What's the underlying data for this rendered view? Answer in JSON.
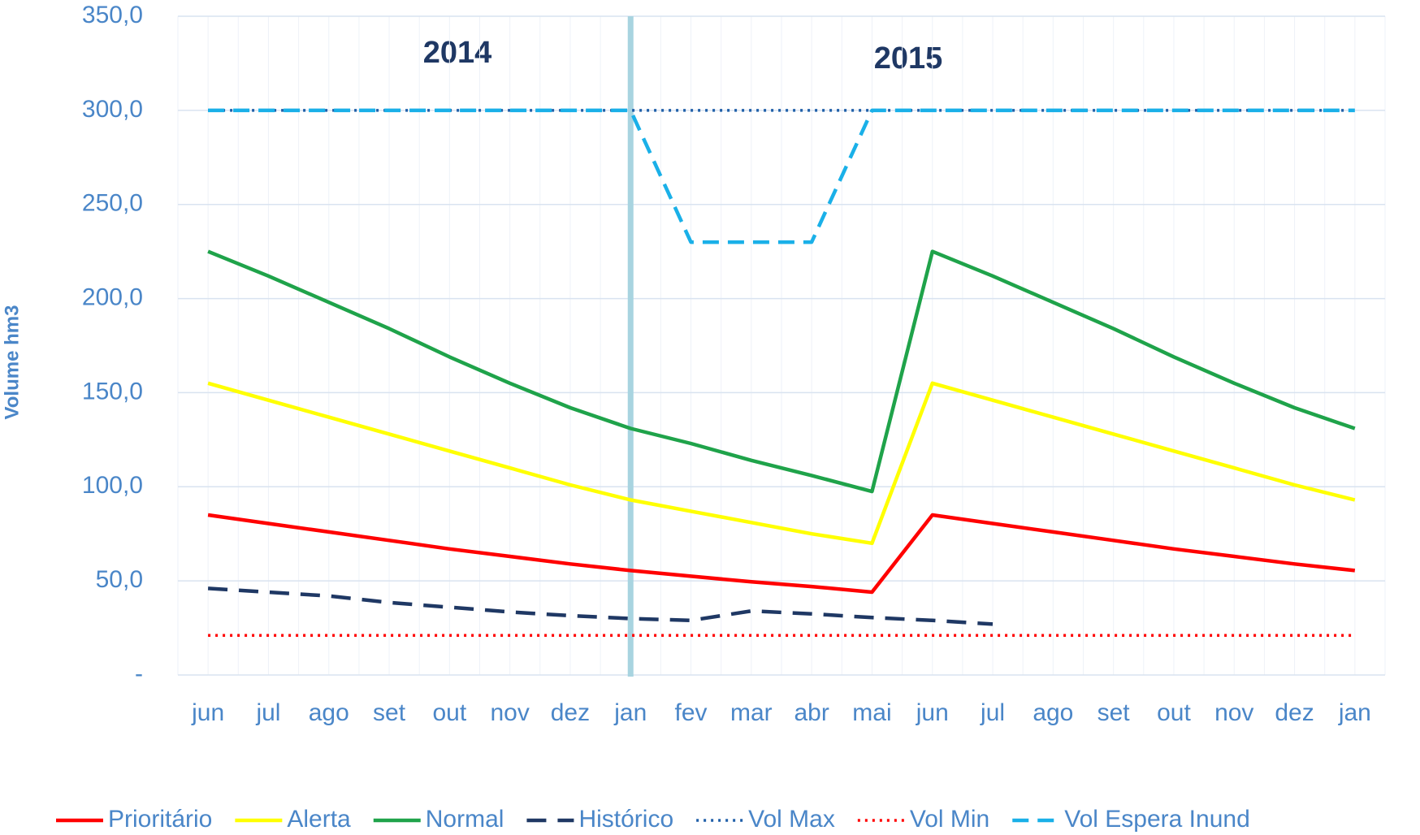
{
  "chart_data": {
    "type": "line",
    "annotations": [
      "2014",
      "2015"
    ],
    "y_label": "Volume hm3",
    "categories": [
      "jun",
      "jul",
      "ago",
      "set",
      "out",
      "nov",
      "dez",
      "jan",
      "fev",
      "mar",
      "abr",
      "mai",
      "jun",
      "jul",
      "ago",
      "set",
      "out",
      "nov",
      "dez",
      "jan"
    ],
    "series": [
      {
        "name": "Prioritário",
        "color": "#ff0000",
        "dash": "solid",
        "values": [
          85,
          80.5,
          76,
          71.5,
          67,
          63,
          59,
          55.5,
          52.5,
          49.5,
          47,
          44,
          85,
          80.5,
          76,
          71.5,
          67,
          63,
          59,
          55.5
        ]
      },
      {
        "name": "Alerta",
        "color": "#ffff00",
        "dash": "solid",
        "values": [
          155,
          146,
          137,
          128,
          119,
          110,
          101,
          93,
          87,
          81,
          75,
          70,
          155,
          146,
          137,
          128,
          119,
          110,
          101,
          93
        ]
      },
      {
        "name": "Normal",
        "color": "#1fa34a",
        "dash": "solid",
        "values": [
          225,
          212,
          198,
          184,
          169,
          155,
          142,
          131,
          123,
          114,
          106,
          97.5,
          225,
          212,
          198,
          184,
          169,
          155,
          142,
          131
        ]
      },
      {
        "name": "Histórico",
        "color": "#1f3864",
        "dash": "dashed",
        "values": [
          46,
          44,
          42,
          38.5,
          36,
          33.5,
          31.5,
          30,
          29,
          34,
          32.5,
          30.5,
          29,
          27,
          null,
          null,
          null,
          null,
          null,
          null
        ]
      },
      {
        "name": "Vol Max",
        "color": "#1f5fa8",
        "dash": "dotted",
        "values": [
          300,
          300,
          300,
          300,
          300,
          300,
          300,
          300,
          300,
          300,
          300,
          300,
          300,
          300,
          300,
          300,
          300,
          300,
          300,
          300
        ]
      },
      {
        "name": "Vol Min",
        "color": "#ff0000",
        "dash": "dotted",
        "values": [
          21,
          21,
          21,
          21,
          21,
          21,
          21,
          21,
          21,
          21,
          21,
          21,
          21,
          21,
          21,
          21,
          21,
          21,
          21,
          21
        ]
      },
      {
        "name": "Vol Espera Inund",
        "color": "#1ab0e8",
        "dash": "dashed",
        "values": [
          300,
          300,
          300,
          300,
          300,
          300,
          300,
          300,
          230,
          230,
          230,
          300,
          300,
          300,
          300,
          300,
          300,
          300,
          300,
          300
        ]
      }
    ],
    "ylim": [
      0,
      350
    ],
    "yticks": [
      {
        "value": 0,
        "label": "-"
      },
      {
        "value": 50,
        "label": "50,0"
      },
      {
        "value": 100,
        "label": "100,0"
      },
      {
        "value": 150,
        "label": "150,0"
      },
      {
        "value": 200,
        "label": "200,0"
      },
      {
        "value": 250,
        "label": "250,0"
      },
      {
        "value": 300,
        "label": "300,0"
      },
      {
        "value": 350,
        "label": "350,0"
      }
    ],
    "grid": true,
    "legend": "bottom"
  }
}
